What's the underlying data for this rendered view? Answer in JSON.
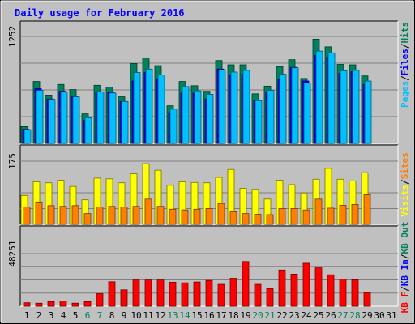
{
  "title": "Daily usage for February 2016",
  "colors": {
    "hits": "#00805c",
    "files": "#0000ff",
    "pages": "#00c0ff",
    "visits": "#ffff00",
    "sites": "#ff8000",
    "kbin": "#ff0000",
    "background": "#c0c0c0",
    "weekend_label": "#00805c",
    "weekday_label": "#000000"
  },
  "chart_data": [
    {
      "type": "bar",
      "panel": "hits-files-pages",
      "ytick": "1252",
      "ylim": [
        0,
        1252
      ],
      "ylabel_parts": [
        "Pages",
        "/",
        "Files",
        "/",
        "Hits"
      ],
      "categories": [
        "1",
        "2",
        "3",
        "4",
        "5",
        "6",
        "7",
        "8",
        "9",
        "10",
        "11",
        "12",
        "13",
        "14",
        "15",
        "16",
        "17",
        "18",
        "19",
        "20",
        "21",
        "22",
        "23",
        "24",
        "25",
        "26",
        "27",
        "28",
        "29",
        "30",
        "31"
      ],
      "series": [
        {
          "name": "Hits",
          "values": [
            195,
            725,
            565,
            690,
            630,
            345,
            680,
            660,
            545,
            935,
            1000,
            910,
            440,
            725,
            675,
            610,
            970,
            920,
            920,
            580,
            670,
            900,
            980,
            760,
            1220,
            1130,
            925,
            920,
            790,
            0,
            0
          ]
        },
        {
          "name": "Files",
          "values": [
            165,
            640,
            520,
            610,
            550,
            270,
            590,
            600,
            490,
            730,
            830,
            750,
            360,
            590,
            590,
            520,
            870,
            800,
            810,
            500,
            600,
            750,
            890,
            730,
            1030,
            1010,
            820,
            840,
            690,
            0,
            0
          ]
        },
        {
          "name": "Pages",
          "values": [
            160,
            620,
            515,
            600,
            545,
            300,
            605,
            590,
            490,
            830,
            870,
            800,
            400,
            665,
            615,
            575,
            860,
            835,
            855,
            500,
            620,
            810,
            885,
            705,
            1080,
            1060,
            850,
            855,
            730,
            0,
            0
          ]
        }
      ]
    },
    {
      "type": "bar",
      "panel": "visits-sites",
      "ytick": "175",
      "ylim": [
        0,
        175
      ],
      "ylabel_parts": [
        "Visits",
        "/",
        "Sites"
      ],
      "categories": [
        "1",
        "2",
        "3",
        "4",
        "5",
        "6",
        "7",
        "8",
        "9",
        "10",
        "11",
        "12",
        "13",
        "14",
        "15",
        "16",
        "17",
        "18",
        "19",
        "20",
        "21",
        "22",
        "23",
        "24",
        "25",
        "26",
        "27",
        "28",
        "29",
        "30",
        "31"
      ],
      "series": [
        {
          "name": "Visits",
          "values": [
            80,
            118,
            115,
            122,
            105,
            68,
            128,
            126,
            115,
            140,
            168,
            150,
            108,
            118,
            116,
            115,
            130,
            152,
            100,
            97,
            70,
            122,
            110,
            87,
            125,
            155,
            125,
            120,
            143,
            0,
            0
          ]
        },
        {
          "name": "Sites",
          "values": [
            48,
            62,
            52,
            50,
            52,
            30,
            48,
            50,
            48,
            50,
            70,
            50,
            42,
            40,
            42,
            44,
            58,
            35,
            30,
            28,
            27,
            44,
            44,
            40,
            70,
            45,
            53,
            55,
            82,
            0,
            0
          ]
        }
      ]
    },
    {
      "type": "bar",
      "panel": "kbytes",
      "ytick": "48251",
      "ylim": [
        0,
        48251
      ],
      "ylabel_parts": [
        "KB F",
        "/",
        "KB In",
        "/",
        "KB Out"
      ],
      "categories": [
        "1",
        "2",
        "3",
        "4",
        "5",
        "6",
        "7",
        "8",
        "9",
        "10",
        "11",
        "12",
        "13",
        "14",
        "15",
        "16",
        "17",
        "18",
        "19",
        "20",
        "21",
        "22",
        "23",
        "24",
        "25",
        "26",
        "27",
        "28",
        "29",
        "30",
        "31"
      ],
      "series": [
        {
          "name": "KB F",
          "values": [
            3200,
            2800,
            4200,
            4800,
            2800,
            4200,
            11500,
            22400,
            15000,
            24000,
            24000,
            24000,
            22000,
            21400,
            22200,
            23600,
            20000,
            25600,
            41000,
            20000,
            16000,
            33200,
            29400,
            39400,
            35200,
            28800,
            24800,
            24200,
            12400,
            0,
            0
          ]
        }
      ]
    }
  ],
  "x_labels": [
    {
      "text": "1",
      "weekend": false
    },
    {
      "text": "2",
      "weekend": false
    },
    {
      "text": "3",
      "weekend": false
    },
    {
      "text": "4",
      "weekend": false
    },
    {
      "text": "5",
      "weekend": false
    },
    {
      "text": "6",
      "weekend": true
    },
    {
      "text": "7",
      "weekend": true
    },
    {
      "text": "8",
      "weekend": false
    },
    {
      "text": "9",
      "weekend": false
    },
    {
      "text": "10",
      "weekend": false
    },
    {
      "text": "11",
      "weekend": false
    },
    {
      "text": "12",
      "weekend": false
    },
    {
      "text": "13",
      "weekend": true
    },
    {
      "text": "14",
      "weekend": true
    },
    {
      "text": "15",
      "weekend": false
    },
    {
      "text": "16",
      "weekend": false
    },
    {
      "text": "17",
      "weekend": false
    },
    {
      "text": "18",
      "weekend": false
    },
    {
      "text": "19",
      "weekend": false
    },
    {
      "text": "20",
      "weekend": true
    },
    {
      "text": "21",
      "weekend": true
    },
    {
      "text": "22",
      "weekend": false
    },
    {
      "text": "23",
      "weekend": false
    },
    {
      "text": "24",
      "weekend": false
    },
    {
      "text": "25",
      "weekend": false
    },
    {
      "text": "26",
      "weekend": false
    },
    {
      "text": "27",
      "weekend": true
    },
    {
      "text": "28",
      "weekend": true
    },
    {
      "text": "29",
      "weekend": false
    },
    {
      "text": "30",
      "weekend": false
    },
    {
      "text": "31",
      "weekend": false
    }
  ]
}
